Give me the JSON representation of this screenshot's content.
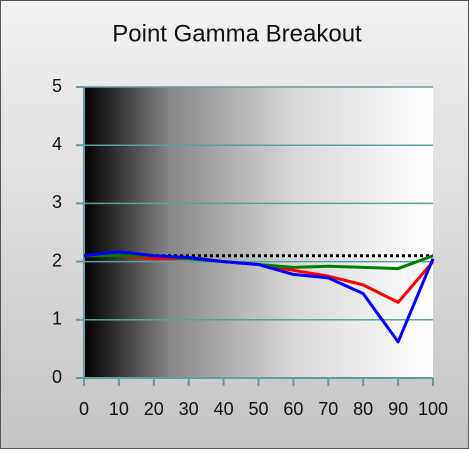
{
  "chart_data": {
    "type": "line",
    "title": "Point Gamma Breakout",
    "x": [
      0,
      10,
      20,
      30,
      40,
      50,
      60,
      70,
      80,
      90,
      100
    ],
    "series": [
      {
        "color": "#000000",
        "dashed": true,
        "values": [
          2.1,
          2.1,
          2.1,
          2.1,
          2.1,
          2.1,
          2.1,
          2.1,
          2.1,
          2.1,
          2.1
        ]
      },
      {
        "color": "#ff0000",
        "values": [
          2.1,
          2.1,
          2.05,
          2.05,
          2.0,
          1.95,
          1.85,
          1.75,
          1.6,
          1.3,
          2.0
        ]
      },
      {
        "color": "#008000",
        "values": [
          2.1,
          2.1,
          2.1,
          2.05,
          2.0,
          1.95,
          1.9,
          1.92,
          1.9,
          1.88,
          2.1
        ]
      },
      {
        "color": "#0000ff",
        "values": [
          2.1,
          2.17,
          2.1,
          2.07,
          2.0,
          1.95,
          1.78,
          1.72,
          1.45,
          0.62,
          2.05
        ]
      }
    ],
    "xlim": [
      0,
      100
    ],
    "xticks": [
      0,
      10,
      20,
      30,
      40,
      50,
      60,
      70,
      80,
      90,
      100
    ],
    "ylim": [
      0,
      5
    ],
    "yticks": [
      0,
      1,
      2,
      3,
      4,
      5
    ],
    "grid": true
  }
}
